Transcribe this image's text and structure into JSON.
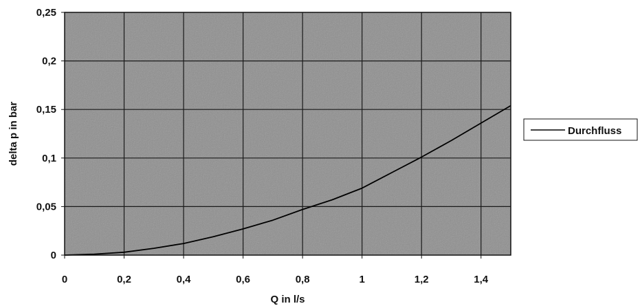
{
  "chart_data": {
    "type": "line",
    "title": "",
    "xlabel": "Q in l/s",
    "ylabel": "delta p in bar",
    "xlim": [
      0,
      1.5
    ],
    "ylim": [
      0,
      0.25
    ],
    "x_ticks": [
      0,
      0.2,
      0.4,
      0.6,
      0.8,
      1,
      1.2,
      1.4
    ],
    "x_tick_labels": [
      "0",
      "0,2",
      "0,4",
      "0,6",
      "0,8",
      "1",
      "1,2",
      "1,4"
    ],
    "y_ticks": [
      0,
      0.05,
      0.1,
      0.15,
      0.2,
      0.25
    ],
    "y_tick_labels": [
      "0",
      "0,05",
      "0,1",
      "0,15",
      "0,2",
      "0,25"
    ],
    "grid": true,
    "legend_position": "right",
    "series": [
      {
        "name": "Durchfluss",
        "x": [
          0,
          0.1,
          0.2,
          0.3,
          0.4,
          0.5,
          0.6,
          0.7,
          0.8,
          0.9,
          1.0,
          1.1,
          1.2,
          1.3,
          1.4,
          1.5
        ],
        "y": [
          0,
          0.001,
          0.003,
          0.007,
          0.012,
          0.019,
          0.027,
          0.036,
          0.047,
          0.057,
          0.069,
          0.085,
          0.101,
          0.118,
          0.136,
          0.154
        ]
      }
    ],
    "colors": {
      "plot_background": "#8e8e8e",
      "grid": "#1a1a1a",
      "line": "#000000"
    }
  }
}
